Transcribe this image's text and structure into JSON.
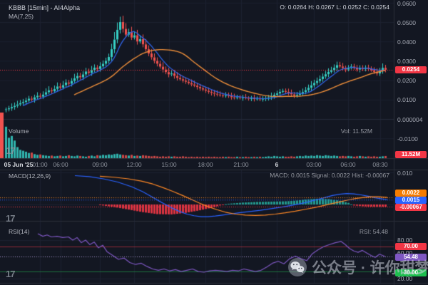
{
  "header": {
    "title": "KBBB [15min] - AI4Alpha",
    "ma_label": "MA(7,25)",
    "ohlc": "O: 0.0264  H: 0.0267  L: 0.0252  C: 0.0254"
  },
  "panes": {
    "volume": {
      "label": "Volume",
      "value_label": "Vol: 11.52M"
    },
    "macd": {
      "label": "MACD(12,26,9)",
      "values_label": "MACD: 0.0015 Signal: 0.0022 Hist: -0.00067"
    },
    "rsi": {
      "label": "RSI(14)",
      "value_label": "RSI: 54.48"
    }
  },
  "badges": {
    "price": "0.0254",
    "volume": "11.52M",
    "macd_signal": "0.0022",
    "macd_line": "0.0015",
    "macd_hist": "-0.00067",
    "rsi_over": "70.00",
    "rsi_value": "54.48",
    "rsi_under": "30.00"
  },
  "price_axis": {
    "main": [
      "0.0600",
      "0.0500",
      "0.0400",
      "0.0300",
      "0.0200",
      "0.0100",
      "0.000004",
      "-0.0100"
    ],
    "macd": [
      "0.010"
    ],
    "rsi": [
      "80.00",
      "60.00",
      "20.00"
    ]
  },
  "time_axis": {
    "labels": [
      "05 Jun '25",
      "01:00",
      "06:00",
      "09:00",
      "12:00",
      "15:00",
      "18:00",
      "21:00",
      "6",
      "03:00",
      "06:00",
      "08:30"
    ],
    "bold": [
      true,
      false,
      false,
      false,
      false,
      false,
      false,
      false,
      true,
      false,
      false,
      false
    ]
  },
  "watermark": {
    "text": "公众号 · 许你甜梦"
  },
  "tv_logo_text": "17",
  "colors": {
    "background": "#131722",
    "grid": "#1c2130",
    "zero_grid": "#252b3b",
    "border": "#2a2e39",
    "up": "#36cfc5",
    "down": "#f0524f",
    "ma_fast": "#3067f0",
    "ma_slow": "#ef8f3a",
    "macd_line": "#2962ff",
    "macd_signal": "#ff8825",
    "hist_up": "#26a69a",
    "hist_down": "#f23645",
    "rsi_line": "#7e57c2",
    "rsi_over_line": "rgba(242,54,69,0.55)",
    "rsi_under_line": "rgba(34,171,79,0.6)",
    "price_line": "#f23645",
    "badge_red": "#f23645",
    "badge_orange": "#f57c00",
    "badge_blue": "#2962ff",
    "badge_purple": "#7e57c2",
    "badge_green": "#1dbf4e"
  },
  "chart_data": [
    {
      "type": "candlestick",
      "title": "KBBB [15min] - AI4Alpha",
      "interval": "15min",
      "start_label": "05 Jun '25",
      "end_label": "08:30",
      "ylim": [
        -0.01,
        0.06
      ],
      "last_candle": {
        "o": 0.0264,
        "h": 0.0267,
        "l": 0.0252,
        "c": 0.0254
      },
      "last_price": 0.0254,
      "ma_periods": [
        7,
        25
      ],
      "closes_1e4": [
        50,
        55,
        62,
        68,
        75,
        82,
        88,
        95,
        105,
        100,
        112,
        120,
        115,
        126,
        138,
        148,
        143,
        155,
        168,
        162,
        175,
        188,
        182,
        196,
        210,
        222,
        215,
        230,
        245,
        238,
        252,
        265,
        258,
        272,
        285,
        300,
        320,
        360,
        410,
        460,
        500,
        465,
        435,
        448,
        420,
        432,
        400,
        412,
        385,
        360,
        338,
        318,
        300,
        285,
        270,
        255,
        242,
        230,
        235,
        222,
        212,
        205,
        198,
        192,
        185,
        178,
        172,
        165,
        158,
        152,
        146,
        140,
        135,
        130,
        126,
        122,
        118,
        122,
        118,
        112,
        108,
        112,
        109,
        111,
        108,
        105,
        107,
        103,
        105,
        102,
        104,
        108,
        112,
        118,
        125,
        132,
        140,
        145,
        140,
        134,
        127,
        121,
        125,
        131,
        139,
        149,
        161,
        174,
        186,
        196,
        206,
        219,
        231,
        243,
        252,
        264,
        278,
        271,
        263,
        255,
        263,
        271,
        263,
        255,
        263,
        258,
        265,
        258,
        251,
        243,
        235,
        248,
        264,
        254
      ],
      "volumes_m": [
        170,
        110,
        120,
        95,
        60,
        45,
        40,
        35,
        28,
        30,
        22,
        18,
        20,
        16,
        14,
        12,
        14,
        10,
        12,
        14,
        10,
        12,
        16,
        12,
        10,
        14,
        12,
        10,
        8,
        12,
        14,
        10,
        16,
        14,
        18,
        16,
        20,
        18,
        22,
        24,
        20,
        18,
        16,
        14,
        18,
        12,
        14,
        12,
        16,
        14,
        12,
        10,
        12,
        10,
        8,
        10,
        8,
        10,
        8,
        10,
        8,
        8,
        10,
        8,
        6,
        8,
        6,
        8,
        6,
        8,
        6,
        8,
        6,
        8,
        6,
        6,
        8,
        6,
        8,
        6,
        6,
        8,
        6,
        6,
        8,
        6,
        6,
        8,
        6,
        8,
        6,
        8,
        10,
        8,
        12,
        10,
        8,
        10,
        8,
        8,
        10,
        8,
        10,
        12,
        10,
        14,
        12,
        14,
        12,
        16,
        14,
        12,
        16,
        14,
        12,
        14,
        12,
        10,
        12,
        10,
        12,
        10,
        8,
        10,
        12,
        10,
        8,
        10,
        8,
        10,
        8,
        8,
        10,
        11.52
      ],
      "clipped_first_volume_m": 300,
      "last_volume_label": "11.52M"
    },
    {
      "type": "line+bar",
      "name": "MACD(12,26,9)",
      "last": {
        "macd": 0.0015,
        "signal": 0.0022,
        "hist": -0.00067
      },
      "axis_top_label": 0.01,
      "macd_pts_1e4": [
        [
          105,
          90
        ],
        [
          125,
          87
        ],
        [
          145,
          80
        ],
        [
          165,
          70
        ],
        [
          185,
          55
        ],
        [
          200,
          40
        ],
        [
          212,
          25
        ],
        [
          222,
          12
        ],
        [
          232,
          0
        ],
        [
          242,
          -12
        ],
        [
          252,
          -22
        ],
        [
          262,
          -30
        ],
        [
          272,
          -35
        ],
        [
          282,
          -38
        ],
        [
          292,
          -38
        ],
        [
          302,
          -36
        ],
        [
          312,
          -33
        ],
        [
          322,
          -30
        ],
        [
          335,
          -26
        ],
        [
          350,
          -22
        ],
        [
          365,
          -18
        ],
        [
          380,
          -13
        ],
        [
          395,
          -8
        ],
        [
          408,
          -3
        ],
        [
          420,
          2
        ],
        [
          432,
          8
        ],
        [
          444,
          15
        ],
        [
          456,
          22
        ],
        [
          466,
          28
        ],
        [
          476,
          32
        ],
        [
          486,
          34
        ],
        [
          496,
          33
        ],
        [
          506,
          30
        ],
        [
          516,
          26
        ],
        [
          526,
          21
        ],
        [
          534,
          18
        ],
        [
          543,
          15
        ]
      ],
      "signal_pts_1e4": [
        [
          140,
          88
        ],
        [
          160,
          85
        ],
        [
          180,
          80
        ],
        [
          198,
          73
        ],
        [
          214,
          64
        ],
        [
          228,
          53
        ],
        [
          242,
          41
        ],
        [
          256,
          28
        ],
        [
          268,
          16
        ],
        [
          280,
          4
        ],
        [
          292,
          -7
        ],
        [
          304,
          -16
        ],
        [
          316,
          -24
        ],
        [
          330,
          -30
        ],
        [
          344,
          -33
        ],
        [
          358,
          -34
        ],
        [
          372,
          -33
        ],
        [
          386,
          -30
        ],
        [
          400,
          -26
        ],
        [
          414,
          -21
        ],
        [
          428,
          -15
        ],
        [
          442,
          -9
        ],
        [
          454,
          -3
        ],
        [
          466,
          3
        ],
        [
          478,
          9
        ],
        [
          490,
          15
        ],
        [
          500,
          19
        ],
        [
          510,
          22
        ],
        [
          520,
          24
        ],
        [
          530,
          24
        ],
        [
          537,
          23
        ],
        [
          543,
          22
        ]
      ],
      "hist_pts_1e4": [
        [
          140,
          -2
        ],
        [
          160,
          -8
        ],
        [
          180,
          -16
        ],
        [
          200,
          -24
        ],
        [
          220,
          -30
        ],
        [
          240,
          -31
        ],
        [
          260,
          -26
        ],
        [
          280,
          -18
        ],
        [
          300,
          -8
        ],
        [
          310,
          -2
        ],
        [
          318,
          2
        ],
        [
          340,
          6
        ],
        [
          360,
          8
        ],
        [
          380,
          9
        ],
        [
          400,
          10
        ],
        [
          415,
          12
        ],
        [
          430,
          16
        ],
        [
          445,
          18
        ],
        [
          460,
          17
        ],
        [
          475,
          12
        ],
        [
          488,
          5
        ],
        [
          495,
          -3
        ],
        [
          510,
          -6
        ],
        [
          525,
          -7
        ],
        [
          540,
          -7
        ]
      ]
    },
    {
      "type": "line",
      "name": "RSI(14)",
      "last": 54.48,
      "levels": {
        "overbought": 70,
        "oversold": 30,
        "current_dotted": 54.48
      },
      "ylim": [
        20,
        80
      ],
      "pts": [
        [
          53,
          90
        ],
        [
          60,
          86
        ],
        [
          66,
          88
        ],
        [
          72,
          85
        ],
        [
          80,
          86
        ],
        [
          88,
          84
        ],
        [
          96,
          85
        ],
        [
          102,
          80
        ],
        [
          108,
          84
        ],
        [
          114,
          76
        ],
        [
          120,
          80
        ],
        [
          126,
          73
        ],
        [
          132,
          77
        ],
        [
          138,
          68
        ],
        [
          144,
          72
        ],
        [
          150,
          62
        ],
        [
          158,
          56
        ],
        [
          166,
          50
        ],
        [
          174,
          52
        ],
        [
          182,
          45
        ],
        [
          190,
          42
        ],
        [
          198,
          44
        ],
        [
          206,
          39
        ],
        [
          214,
          35
        ],
        [
          222,
          33
        ],
        [
          230,
          35
        ],
        [
          238,
          32
        ],
        [
          246,
          34
        ],
        [
          254,
          31
        ],
        [
          262,
          33
        ],
        [
          270,
          35
        ],
        [
          278,
          31
        ],
        [
          286,
          30
        ],
        [
          294,
          32
        ],
        [
          302,
          33
        ],
        [
          310,
          32
        ],
        [
          318,
          31
        ],
        [
          326,
          33
        ],
        [
          334,
          32
        ],
        [
          342,
          35
        ],
        [
          350,
          33
        ],
        [
          358,
          31
        ],
        [
          366,
          33
        ],
        [
          374,
          38
        ],
        [
          382,
          44
        ],
        [
          390,
          47
        ],
        [
          398,
          43
        ],
        [
          406,
          51
        ],
        [
          414,
          55
        ],
        [
          422,
          51
        ],
        [
          430,
          48
        ],
        [
          438,
          59
        ],
        [
          446,
          65
        ],
        [
          454,
          70
        ],
        [
          462,
          73
        ],
        [
          470,
          76
        ],
        [
          478,
          78
        ],
        [
          484,
          73
        ],
        [
          490,
          67
        ],
        [
          496,
          63
        ],
        [
          502,
          61
        ],
        [
          508,
          64
        ],
        [
          514,
          60
        ],
        [
          520,
          56
        ],
        [
          526,
          53
        ],
        [
          532,
          58
        ],
        [
          540,
          54.5
        ]
      ]
    }
  ]
}
